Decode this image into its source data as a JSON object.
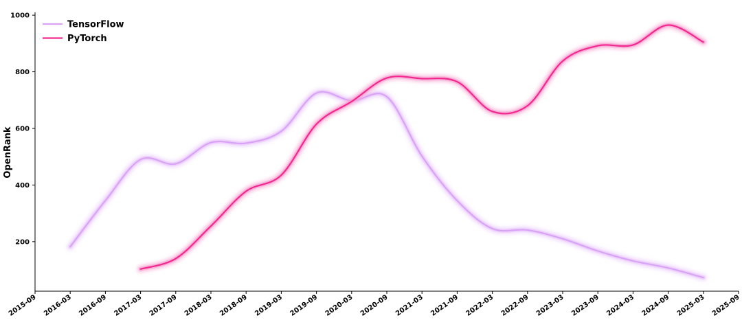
{
  "chart_data": {
    "type": "line",
    "title": "",
    "xlabel": "",
    "ylabel": "OpenRank",
    "x_ticks": [
      "2015-09",
      "2016-03",
      "2016-09",
      "2017-03",
      "2017-09",
      "2018-03",
      "2018-09",
      "2019-03",
      "2019-09",
      "2020-03",
      "2020-09",
      "2021-03",
      "2021-09",
      "2022-03",
      "2022-09",
      "2023-03",
      "2023-09",
      "2024-03",
      "2024-09",
      "2025-03",
      "2025-09"
    ],
    "y_ticks": [
      200,
      400,
      600,
      800,
      1000
    ],
    "ylim": [
      25,
      1010
    ],
    "xlim": [
      "2015-09",
      "2025-09"
    ],
    "grid": false,
    "legend_position": "top-left",
    "series": [
      {
        "name": "TensorFlow",
        "color": "#d9a3f5",
        "glow": "#e9c8fb",
        "points": [
          [
            "2016-03",
            182
          ],
          [
            "2016-09",
            345
          ],
          [
            "2017-03",
            490
          ],
          [
            "2017-09",
            475
          ],
          [
            "2018-03",
            550
          ],
          [
            "2018-09",
            548
          ],
          [
            "2019-03",
            590
          ],
          [
            "2019-09",
            725
          ],
          [
            "2020-03",
            698
          ],
          [
            "2020-09",
            712
          ],
          [
            "2021-03",
            502
          ],
          [
            "2021-09",
            345
          ],
          [
            "2022-03",
            246
          ],
          [
            "2022-09",
            241
          ],
          [
            "2023-03",
            210
          ],
          [
            "2023-09",
            167
          ],
          [
            "2024-03",
            132
          ],
          [
            "2024-09",
            107
          ],
          [
            "2025-03",
            73
          ]
        ]
      },
      {
        "name": "PyTorch",
        "color": "#f2278f",
        "glow": "#f7a0cf",
        "points": [
          [
            "2017-03",
            103
          ],
          [
            "2017-09",
            140
          ],
          [
            "2018-03",
            255
          ],
          [
            "2018-09",
            378
          ],
          [
            "2019-03",
            435
          ],
          [
            "2019-09",
            615
          ],
          [
            "2020-03",
            695
          ],
          [
            "2020-09",
            778
          ],
          [
            "2021-03",
            776
          ],
          [
            "2021-09",
            765
          ],
          [
            "2022-03",
            660
          ],
          [
            "2022-09",
            680
          ],
          [
            "2023-03",
            838
          ],
          [
            "2023-09",
            892
          ],
          [
            "2024-03",
            895
          ],
          [
            "2024-09",
            965
          ],
          [
            "2025-03",
            905
          ]
        ]
      }
    ]
  }
}
